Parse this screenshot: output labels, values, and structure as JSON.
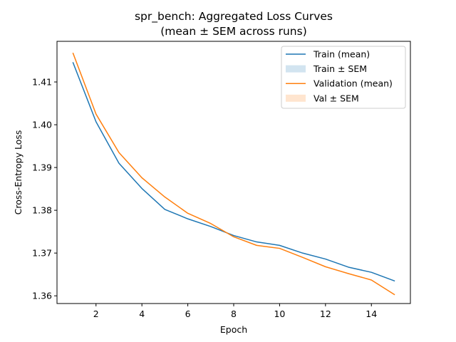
{
  "chart_data": {
    "type": "line",
    "title": "spr_bench: Aggregated Loss Curves",
    "subtitle": "(mean ± SEM across runs)",
    "xlabel": "Epoch",
    "ylabel": "Cross-Entropy Loss",
    "x": [
      1,
      2,
      3,
      4,
      5,
      6,
      7,
      8,
      9,
      10,
      11,
      12,
      13,
      14,
      15
    ],
    "xlim": [
      0.3,
      15.7
    ],
    "ylim": [
      1.3582,
      1.4195
    ],
    "xticks": [
      2,
      4,
      6,
      8,
      10,
      12,
      14
    ],
    "yticks": [
      1.36,
      1.37,
      1.38,
      1.39,
      1.4,
      1.41
    ],
    "ytick_labels": [
      "1.36",
      "1.37",
      "1.38",
      "1.39",
      "1.40",
      "1.41"
    ],
    "grid": false,
    "legend_position": "top-right",
    "series": [
      {
        "name": "Train (mean)",
        "color": "#1f77b4",
        "values": [
          1.4145,
          1.4007,
          1.391,
          1.3851,
          1.3802,
          1.378,
          1.3762,
          1.3741,
          1.3726,
          1.3718,
          1.37,
          1.3686,
          1.3667,
          1.3655,
          1.3635
        ]
      },
      {
        "name": "Validation (mean)",
        "color": "#ff7f0e",
        "values": [
          1.4167,
          1.4025,
          1.3935,
          1.3876,
          1.3831,
          1.3793,
          1.3769,
          1.3738,
          1.3718,
          1.3711,
          1.369,
          1.3668,
          1.3652,
          1.3637,
          1.3603
        ]
      }
    ],
    "legend": [
      {
        "label": "Train (mean)",
        "kind": "line",
        "color": "#1f77b4"
      },
      {
        "label": "Train ± SEM",
        "kind": "patch",
        "color": "#1f77b4"
      },
      {
        "label": "Validation (mean)",
        "kind": "line",
        "color": "#ff7f0e"
      },
      {
        "label": "Val ± SEM",
        "kind": "patch",
        "color": "#ff7f0e"
      }
    ]
  }
}
